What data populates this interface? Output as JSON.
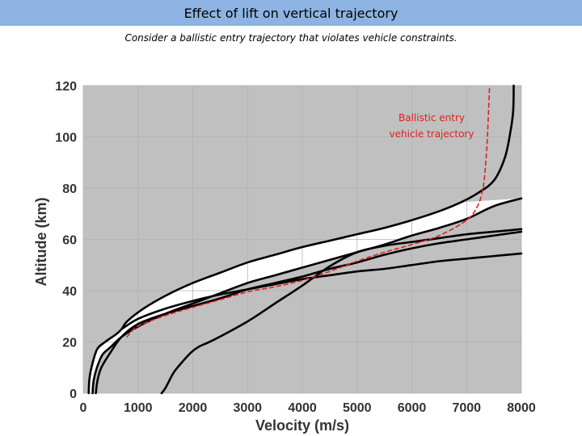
{
  "header": {
    "title": "Effect of lift on vertical trajectory",
    "subtitle": "Consider a ballistic entry trajectory that violates vehicle constraints."
  },
  "colors": {
    "title_bar": "#8db3e2",
    "plot_background": "#c0c0c0",
    "corridor": "#ffffff",
    "boundary_lines": "#000000",
    "ballistic_trajectory": "#e02020"
  },
  "chart_data": {
    "type": "line",
    "title": "",
    "xlabel": "Velocity (m/s)",
    "ylabel": "Altitude (km)",
    "xlim": [
      0,
      8000
    ],
    "ylim": [
      0,
      120
    ],
    "xticks": [
      "0",
      "1000",
      "2000",
      "3000",
      "4000",
      "5000",
      "6000",
      "7000",
      "8000"
    ],
    "yticks": [
      "0",
      "20",
      "40",
      "60",
      "80",
      "100",
      "120"
    ],
    "grid": true,
    "annotation": [
      "Ballistic entry",
      "vehicle trajectory"
    ],
    "shaded_regions": [
      {
        "fill": "white",
        "meaning": "feasible corridor between upper and lower boundaries"
      }
    ],
    "series": [
      {
        "style": "black-solid",
        "role": "corridor-upper-boundary",
        "points": [
          [
            100,
            0
          ],
          [
            110,
            5
          ],
          [
            150,
            10
          ],
          [
            250,
            17
          ],
          [
            400,
            20
          ],
          [
            600,
            23
          ],
          [
            700,
            25
          ],
          [
            800,
            28
          ],
          [
            1100,
            33
          ],
          [
            1500,
            38
          ],
          [
            2000,
            43
          ],
          [
            2500,
            47
          ],
          [
            3000,
            51
          ],
          [
            3500,
            54
          ],
          [
            4000,
            57
          ],
          [
            4500,
            59.5
          ],
          [
            5000,
            62
          ],
          [
            5500,
            64.5
          ],
          [
            6000,
            67.5
          ],
          [
            6500,
            71
          ],
          [
            6900,
            74.5
          ],
          [
            7200,
            78
          ],
          [
            7500,
            83
          ],
          [
            7700,
            92
          ],
          [
            7800,
            102
          ],
          [
            7850,
            110
          ],
          [
            7860,
            120
          ]
        ]
      },
      {
        "style": "black-solid",
        "role": "corridor-lower-boundary",
        "points": [
          [
            170,
            0
          ],
          [
            190,
            5
          ],
          [
            250,
            10
          ],
          [
            350,
            15
          ],
          [
            500,
            18
          ],
          [
            700,
            22
          ],
          [
            1000,
            26
          ],
          [
            1500,
            31
          ],
          [
            2000,
            35
          ],
          [
            2500,
            39
          ],
          [
            3000,
            43
          ],
          [
            3500,
            46
          ],
          [
            4000,
            49
          ],
          [
            4500,
            52
          ],
          [
            5000,
            55
          ],
          [
            5500,
            58
          ],
          [
            6000,
            61.5
          ],
          [
            6500,
            64.5
          ],
          [
            7000,
            68
          ],
          [
            7500,
            73
          ],
          [
            8000,
            76
          ]
        ]
      },
      {
        "style": "black-solid",
        "points": [
          [
            230,
            0
          ],
          [
            260,
            5
          ],
          [
            330,
            10
          ],
          [
            500,
            16
          ],
          [
            700,
            22
          ],
          [
            1000,
            27
          ],
          [
            1500,
            31
          ],
          [
            2000,
            34
          ],
          [
            2500,
            37
          ],
          [
            3000,
            40.5
          ],
          [
            3500,
            43
          ],
          [
            4000,
            45.5
          ],
          [
            4500,
            48.5
          ],
          [
            5000,
            51
          ],
          [
            5500,
            54
          ],
          [
            6000,
            56.5
          ],
          [
            6500,
            58.5
          ],
          [
            7000,
            60
          ],
          [
            7500,
            61.5
          ],
          [
            8000,
            63
          ]
        ]
      },
      {
        "style": "black-solid",
        "points": [
          [
            1430,
            0
          ],
          [
            1500,
            2
          ],
          [
            1650,
            8
          ],
          [
            1800,
            12
          ],
          [
            1950,
            15.5
          ],
          [
            2100,
            18
          ],
          [
            2400,
            21
          ],
          [
            3000,
            28
          ],
          [
            3500,
            35
          ],
          [
            4000,
            42
          ],
          [
            4500,
            49.5
          ],
          [
            5000,
            55
          ],
          [
            5500,
            57.5
          ],
          [
            6000,
            59
          ],
          [
            6500,
            60.5
          ],
          [
            7000,
            62
          ],
          [
            7500,
            63
          ],
          [
            8000,
            64
          ]
        ]
      },
      {
        "style": "black-solid",
        "points": [
          [
            700,
            25
          ],
          [
            1000,
            29
          ],
          [
            1500,
            33
          ],
          [
            2000,
            36
          ],
          [
            2500,
            38.5
          ],
          [
            3000,
            40.5
          ],
          [
            3500,
            42.5
          ],
          [
            4000,
            44.5
          ],
          [
            4500,
            46
          ],
          [
            5000,
            47.5
          ],
          [
            5500,
            48.5
          ],
          [
            6000,
            50
          ],
          [
            6500,
            51.5
          ],
          [
            7000,
            52.5
          ],
          [
            7500,
            53.5
          ],
          [
            8000,
            54.5
          ]
        ]
      },
      {
        "name": "Ballistic entry vehicle trajectory",
        "style": "red-dashed",
        "points": [
          [
            800,
            22
          ],
          [
            950,
            25.5
          ],
          [
            1200,
            28
          ],
          [
            1600,
            31
          ],
          [
            2000,
            33.5
          ],
          [
            2500,
            36.5
          ],
          [
            3000,
            39.5
          ],
          [
            3500,
            41.5
          ],
          [
            4000,
            44
          ],
          [
            4500,
            47.5
          ],
          [
            5000,
            51.5
          ],
          [
            5500,
            55
          ],
          [
            6000,
            58
          ],
          [
            6500,
            61.5
          ],
          [
            7000,
            67.5
          ],
          [
            7200,
            73
          ],
          [
            7300,
            80
          ],
          [
            7350,
            90
          ],
          [
            7380,
            100
          ],
          [
            7400,
            110
          ],
          [
            7420,
            120
          ]
        ]
      }
    ]
  }
}
